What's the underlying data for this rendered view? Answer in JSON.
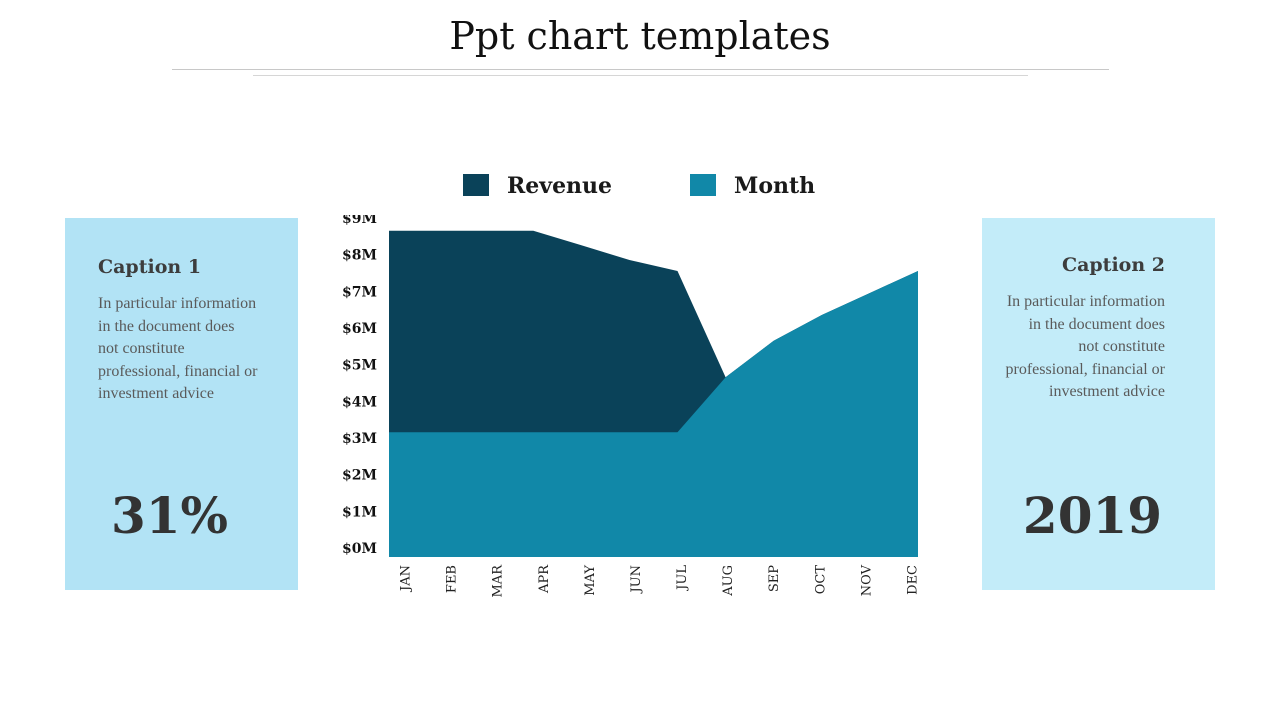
{
  "title": "Ppt chart templates",
  "colors": {
    "revenue": "#0a4259",
    "month": "#1188a8",
    "card_left": "#b2e3f5",
    "card_right": "#c3ecf9"
  },
  "left_card": {
    "caption": "Caption 1",
    "body": "In particular information in the document does not constitute professional, financial or investment advice",
    "stat": "31%"
  },
  "right_card": {
    "caption": "Caption 2",
    "body": "In particular information in the document does not constitute professional, financial or investment advice",
    "stat": "2019"
  },
  "chart_data": {
    "type": "area",
    "categories": [
      "JAN",
      "FEB",
      "MAR",
      "APR",
      "MAY",
      "JUN",
      "JUL",
      "AUG",
      "SEP",
      "OCT",
      "NOV",
      "DEC"
    ],
    "y_tick_labels": [
      "$0M",
      "$1M",
      "$2M",
      "$3M",
      "$4M",
      "$5M",
      "$6M",
      "$7M",
      "$8M",
      "$9M"
    ],
    "ylim": [
      0,
      9
    ],
    "grid": false,
    "legend_position": "top",
    "series": [
      {
        "name": "Revenue",
        "values": [
          8.9,
          8.9,
          8.9,
          8.9,
          8.5,
          8.1,
          7.8,
          4.9,
          5.9,
          6.6,
          7.2,
          7.8
        ]
      },
      {
        "name": "Month",
        "values": [
          3.4,
          3.4,
          3.4,
          3.4,
          3.4,
          3.4,
          3.4,
          4.9,
          5.9,
          6.6,
          7.2,
          7.8
        ]
      }
    ]
  }
}
